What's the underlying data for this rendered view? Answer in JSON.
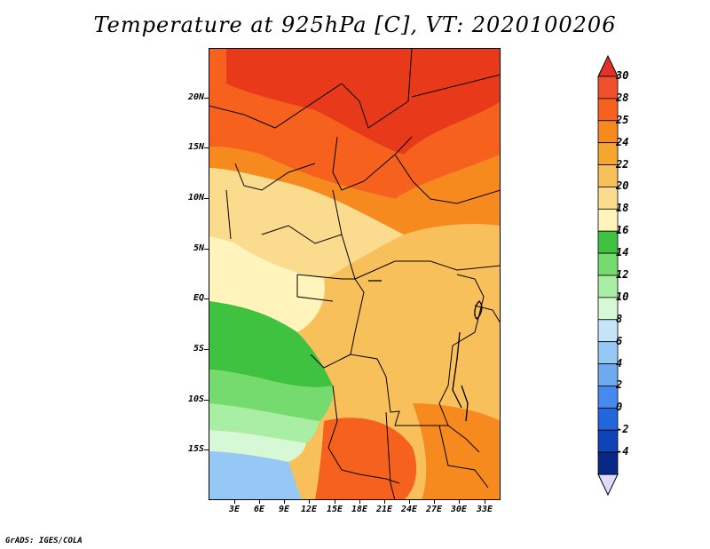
{
  "title": "Temperature at 925hPa [C], VT: 2020100206",
  "credit": "GrADS: IGES/COLA",
  "map": {
    "lat_labels": [
      "20N",
      "15N",
      "10N",
      "5N",
      "EQ",
      "5S",
      "10S",
      "15S"
    ],
    "lon_labels": [
      "3E",
      "6E",
      "9E",
      "12E",
      "15E",
      "18E",
      "21E",
      "24E",
      "27E",
      "30E",
      "33E"
    ]
  },
  "colorbar": {
    "labels": [
      "30",
      "28",
      "25",
      "24",
      "22",
      "20",
      "18",
      "16",
      "14",
      "12",
      "10",
      "8",
      "6",
      "4",
      "2",
      "0",
      "-2",
      "-4"
    ],
    "colors": [
      "#f0502e",
      "#f6621e",
      "#f68a1e",
      "#f6a62c",
      "#f8c05a",
      "#fbdc8e",
      "#fff4bc",
      "#3fc23f",
      "#76db6e",
      "#a8eea4",
      "#d6f8d6",
      "#c4e4fa",
      "#96c8f6",
      "#6eaaf0",
      "#468af0",
      "#2266dc",
      "#0f44b8",
      "#082888",
      "#0a0a6a"
    ],
    "top_arrow_color": "#e03226",
    "bottom_arrow_color": "#dcdcfc"
  }
}
